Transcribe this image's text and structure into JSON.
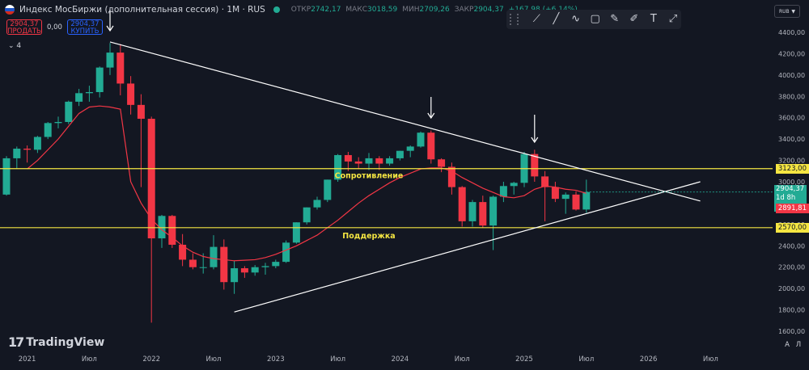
{
  "header": {
    "symbol": "Индекс МосБиржи (дополнительная сессия) · 1М · RUS",
    "ohlc": [
      {
        "label": "ОТКР",
        "value": "2742,17"
      },
      {
        "label": "МАКС",
        "value": "3018,59"
      },
      {
        "label": "МИН",
        "value": "2709,26"
      },
      {
        "label": "ЗАКР",
        "value": "2904,37"
      },
      {
        "label": "",
        "value": "+167,98 (+6,14%)"
      }
    ]
  },
  "trade": {
    "sell_price": "2904,37",
    "sell_label": "ПРОДАТЬ",
    "spread": "0,00",
    "buy_price": "2904,37",
    "buy_label": "КУПИТЬ"
  },
  "indicator_toggle": "4",
  "currency": "RUB",
  "drawing_tools": [
    "trend-line-icon",
    "ray-icon",
    "path-icon",
    "rectangle-icon",
    "brush-icon",
    "pencil-icon",
    "text-icon",
    "ruler-icon"
  ],
  "levels": {
    "resistance_value": "3123,00",
    "resistance_label": "Сопротивление",
    "support_value": "2570,00",
    "support_label": "Поддержка",
    "current_value": "2904,37",
    "current_time": "1d 8h",
    "ma_value": "2891,81"
  },
  "price_axis": [
    "4400,00",
    "4200,00",
    "4000,00",
    "3800,00",
    "3600,00",
    "3400,00",
    "3200,00",
    "3000,00",
    "2800,00",
    "2600,00",
    "2400,00",
    "2200,00",
    "2000,00",
    "1800,00",
    "1600,00"
  ],
  "time_axis": [
    "2021",
    "Июл",
    "2022",
    "Июл",
    "2023",
    "Июл",
    "2024",
    "Июл",
    "2025",
    "Июл",
    "2026",
    "Июл"
  ],
  "branding": "TradingView",
  "bottom_buttons": [
    "A",
    "Л"
  ],
  "colors": {
    "background": "#131722",
    "up": "#22ab94",
    "down": "#f23645",
    "ma": "#f23645",
    "levels": "#f5e642",
    "trend": "#ffffff"
  },
  "chart_data": {
    "type": "candlestick",
    "title": "Индекс МосБиржи (дополнительная сессия)",
    "interval": "1M",
    "x_start": "2020-11",
    "ylim": [
      1550,
      4480
    ],
    "candles": [
      [
        2880,
        3240,
        2870,
        3220
      ],
      [
        3220,
        3330,
        3120,
        3310
      ],
      [
        3310,
        3340,
        3180,
        3300
      ],
      [
        3300,
        3430,
        3270,
        3420
      ],
      [
        3420,
        3560,
        3400,
        3550
      ],
      [
        3550,
        3610,
        3500,
        3560
      ],
      [
        3560,
        3760,
        3540,
        3750
      ],
      [
        3750,
        3870,
        3710,
        3830
      ],
      [
        3830,
        3900,
        3750,
        3840
      ],
      [
        3840,
        4080,
        3790,
        4070
      ],
      [
        4070,
        4300,
        4000,
        4210
      ],
      [
        4210,
        4290,
        3810,
        3920
      ],
      [
        3920,
        3990,
        3630,
        3720
      ],
      [
        3720,
        3820,
        2950,
        3590
      ],
      [
        3590,
        3610,
        1680,
        2470
      ],
      [
        2470,
        2690,
        2380,
        2680
      ],
      [
        2680,
        2690,
        2380,
        2410
      ],
      [
        2410,
        2510,
        2210,
        2270
      ],
      [
        2270,
        2330,
        2180,
        2200
      ],
      [
        2200,
        2330,
        2140,
        2200
      ],
      [
        2200,
        2500,
        2180,
        2390
      ],
      [
        2390,
        2460,
        1990,
        2060
      ],
      [
        2060,
        2260,
        1950,
        2190
      ],
      [
        2190,
        2210,
        2100,
        2150
      ],
      [
        2150,
        2220,
        2120,
        2200
      ],
      [
        2200,
        2240,
        2130,
        2210
      ],
      [
        2210,
        2270,
        2190,
        2250
      ],
      [
        2250,
        2450,
        2240,
        2430
      ],
      [
        2430,
        2620,
        2420,
        2620
      ],
      [
        2620,
        2760,
        2600,
        2760
      ],
      [
        2760,
        2860,
        2740,
        2830
      ],
      [
        2830,
        3020,
        2810,
        3020
      ],
      [
        3020,
        3260,
        3000,
        3250
      ],
      [
        3250,
        3280,
        3100,
        3190
      ],
      [
        3190,
        3230,
        3120,
        3170
      ],
      [
        3170,
        3270,
        3110,
        3220
      ],
      [
        3220,
        3240,
        3110,
        3170
      ],
      [
        3170,
        3240,
        3150,
        3220
      ],
      [
        3220,
        3290,
        3200,
        3290
      ],
      [
        3290,
        3340,
        3230,
        3330
      ],
      [
        3330,
        3470,
        3320,
        3460
      ],
      [
        3460,
        3480,
        3170,
        3210
      ],
      [
        3210,
        3220,
        3090,
        3140
      ],
      [
        3140,
        3180,
        2880,
        2950
      ],
      [
        2950,
        2960,
        2580,
        2630
      ],
      [
        2630,
        2830,
        2580,
        2810
      ],
      [
        2810,
        2870,
        2570,
        2590
      ],
      [
        2590,
        2870,
        2360,
        2860
      ],
      [
        2860,
        3000,
        2810,
        2960
      ],
      [
        2960,
        3000,
        2880,
        2990
      ],
      [
        2990,
        3280,
        2950,
        3260
      ],
      [
        3260,
        3300,
        3000,
        3050
      ],
      [
        3050,
        3100,
        2630,
        2950
      ],
      [
        2950,
        3000,
        2810,
        2840
      ],
      [
        2840,
        2900,
        2700,
        2880
      ],
      [
        2880,
        2910,
        2730,
        2740
      ],
      [
        2740,
        3020,
        2710,
        2904
      ]
    ],
    "moving_average": [
      3000,
      3050,
      3120,
      3200,
      3300,
      3400,
      3520,
      3640,
      3700,
      3710,
      3700,
      3680,
      3000,
      2800,
      2650,
      2550,
      2480,
      2400,
      2340,
      2300,
      2280,
      2270,
      2260,
      2265,
      2270,
      2290,
      2320,
      2360,
      2400,
      2450,
      2500,
      2570,
      2640,
      2720,
      2800,
      2870,
      2930,
      2990,
      3040,
      3080,
      3120,
      3130,
      3130,
      3100,
      3040,
      2990,
      2940,
      2900,
      2860,
      2850,
      2870,
      2930,
      2960,
      2950,
      2930,
      2920,
      2892
    ],
    "resistance": 3123,
    "support": 2570,
    "trendlines": [
      {
        "from": {
          "x": "2021-09",
          "y": 4310
        },
        "to": {
          "x": "2026-06",
          "y": 2820
        }
      },
      {
        "from": {
          "x": "2022-09",
          "y": 1780
        },
        "to": {
          "x": "2026-06",
          "y": 3000
        }
      }
    ],
    "arrows_at": [
      "2021-09",
      "2024-04",
      "2025-02"
    ]
  }
}
